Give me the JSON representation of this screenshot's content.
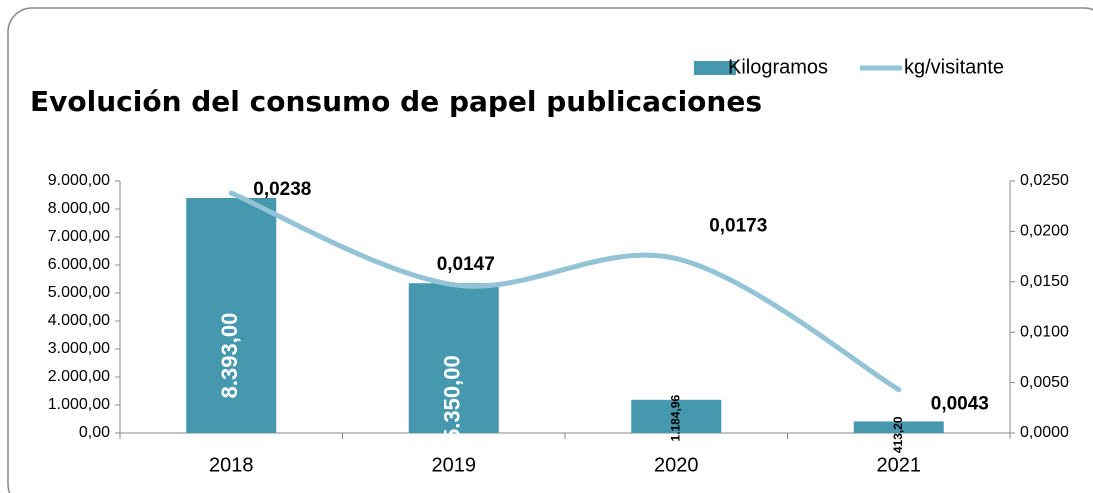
{
  "chart_data": {
    "type": "bar-line",
    "title": "Evolución del consumo de papel publicaciones",
    "categories": [
      "2018",
      "2019",
      "2020",
      "2021"
    ],
    "series": [
      {
        "name": "Kilogramos",
        "color": "#4598ae",
        "type": "bar",
        "values": [
          8393,
          5350,
          1184.96,
          413.2
        ],
        "value_labels": [
          "8.393,00",
          "5.350,00",
          "1.184,96",
          "413,20"
        ]
      },
      {
        "name": "kg/visitante",
        "color": "#93c3d6",
        "type": "line",
        "axis": "y2",
        "smooth": true,
        "values": [
          0.0238,
          0.0147,
          0.0173,
          0.0043
        ],
        "value_labels": [
          "0,0238",
          "0,0147",
          "0,0173",
          "0,0043"
        ]
      }
    ],
    "ylim": [
      0,
      9000
    ],
    "yticks": [
      {
        "value": 0,
        "label": "0,00"
      },
      {
        "value": 1000,
        "label": "1.000,00"
      },
      {
        "value": 2000,
        "label": "2.000,00"
      },
      {
        "value": 3000,
        "label": "3.000,00"
      },
      {
        "value": 4000,
        "label": "4.000,00"
      },
      {
        "value": 5000,
        "label": "5.000,00"
      },
      {
        "value": 6000,
        "label": "6.000,00"
      },
      {
        "value": 7000,
        "label": "7.000,00"
      },
      {
        "value": 8000,
        "label": "8.000,00"
      },
      {
        "value": 9000,
        "label": "9.000,00"
      }
    ],
    "y2lim": [
      0,
      0.025
    ],
    "y2ticks": [
      {
        "value": 0,
        "label": "0,0000"
      },
      {
        "value": 0.005,
        "label": "0,0050"
      },
      {
        "value": 0.01,
        "label": "0,0100"
      },
      {
        "value": 0.015,
        "label": "0,0150"
      },
      {
        "value": 0.02,
        "label": "0,0200"
      },
      {
        "value": 0.025,
        "label": "0,0250"
      }
    ],
    "grid": false,
    "legend": "top-right"
  }
}
